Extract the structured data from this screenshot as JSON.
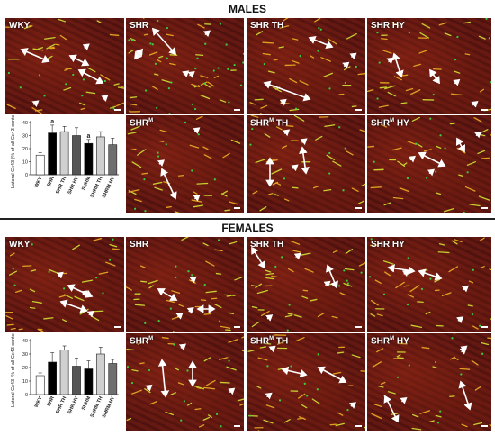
{
  "sections": [
    {
      "title": "MALES",
      "panels": [
        {
          "label": "WKY",
          "sup": "",
          "suffix": ""
        },
        {
          "label": "SHR",
          "sup": "",
          "suffix": ""
        },
        {
          "label": "SHR TH",
          "sup": "",
          "suffix": ""
        },
        {
          "label": "SHR HY",
          "sup": "",
          "suffix": ""
        },
        {
          "label": "SHR",
          "sup": "M",
          "suffix": ""
        },
        {
          "label": "SHR",
          "sup": "M",
          "suffix": " TH"
        },
        {
          "label": "SHR",
          "sup": "M",
          "suffix": " HY"
        }
      ]
    },
    {
      "title": "FEMALES",
      "panels": [
        {
          "label": "WKY",
          "sup": "",
          "suffix": ""
        },
        {
          "label": "SHR",
          "sup": "",
          "suffix": ""
        },
        {
          "label": "SHR TH",
          "sup": "",
          "suffix": ""
        },
        {
          "label": "SHR HY",
          "sup": "",
          "suffix": ""
        },
        {
          "label": "SHR",
          "sup": "M",
          "suffix": ""
        },
        {
          "label": "SHR",
          "sup": "M",
          "suffix": " TH"
        },
        {
          "label": "SHR",
          "sup": "M",
          "suffix": " HY"
        }
      ]
    }
  ],
  "chart_data": [
    {
      "type": "bar",
      "ylabel": "Lateral Cx43 (% of all Cx43 content)",
      "categories": [
        "WKY",
        "SHR",
        "SHR TH",
        "SHR HY",
        "SHRM",
        "SHRM TH",
        "SHRM HY"
      ],
      "values": [
        15,
        32,
        33,
        30,
        24,
        29,
        23
      ],
      "errors": [
        2,
        6,
        4,
        6,
        3,
        4,
        5
      ],
      "annotations": [
        "",
        "a",
        "",
        "",
        "a",
        "",
        ""
      ],
      "ylim": [
        0,
        40
      ],
      "yticks": [
        0,
        10,
        20,
        30,
        40
      ],
      "colors": [
        "#ffffff",
        "#000000",
        "#d0d0d0",
        "#555555",
        "#000000",
        "#d0d0d0",
        "#6e6e6e"
      ]
    },
    {
      "type": "bar",
      "ylabel": "Lateral Cx43 (% of all Cx43 content)",
      "categories": [
        "WKY",
        "SHR",
        "SHR TH",
        "SHR HY",
        "SHRM",
        "SHRM TH",
        "SHRM HY"
      ],
      "values": [
        14,
        24,
        33,
        21,
        19,
        30,
        23
      ],
      "errors": [
        2,
        7,
        3,
        6,
        6,
        5,
        3
      ],
      "annotations": [
        "",
        "",
        "",
        "",
        "",
        "",
        ""
      ],
      "ylim": [
        0,
        40
      ],
      "yticks": [
        0,
        10,
        20,
        30,
        40
      ],
      "colors": [
        "#ffffff",
        "#000000",
        "#d0d0d0",
        "#555555",
        "#000000",
        "#d0d0d0",
        "#6e6e6e"
      ]
    }
  ]
}
